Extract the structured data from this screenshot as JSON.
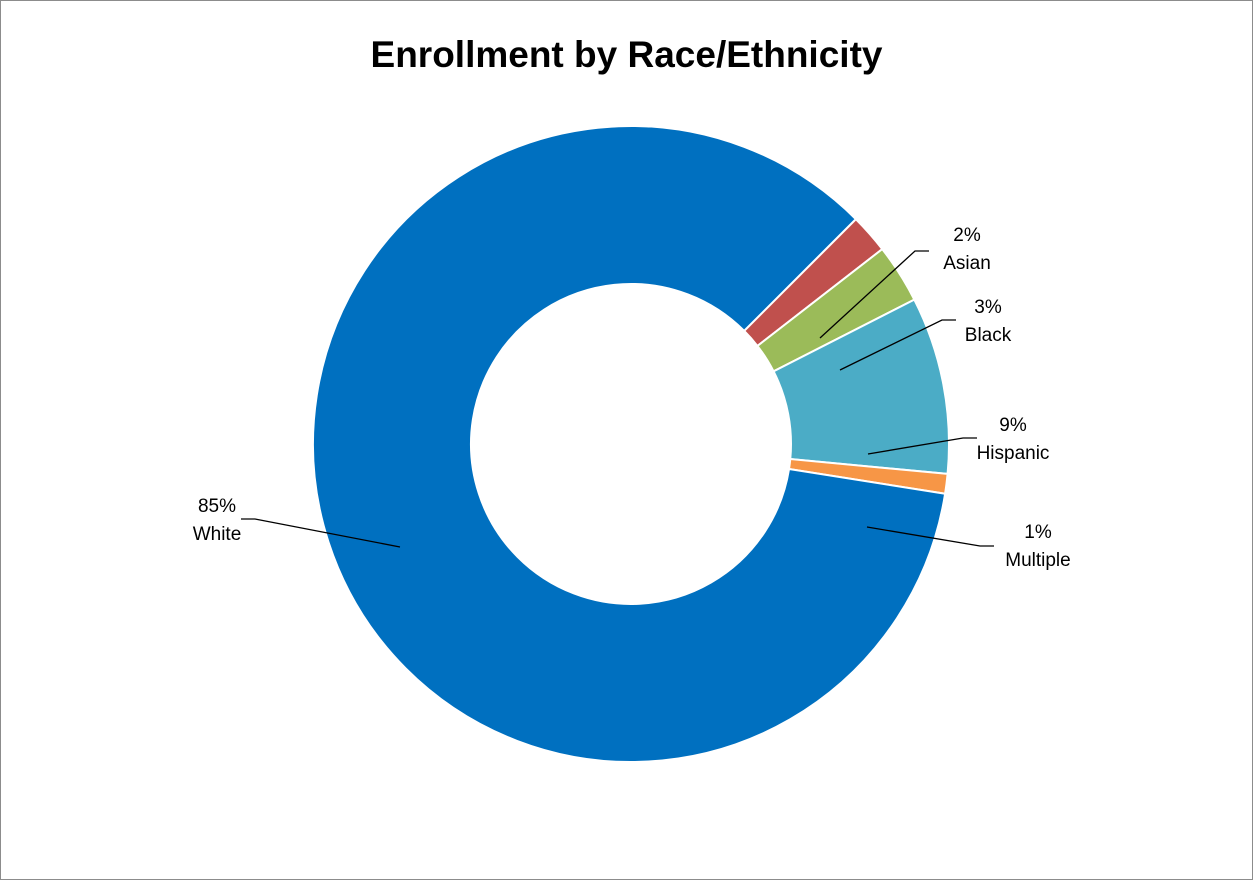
{
  "chart_data": {
    "type": "pie",
    "subtype": "doughnut",
    "title": "Enrollment by Race/Ethnicity",
    "slices": [
      {
        "category": "White",
        "value": 85,
        "label": "85%",
        "color": "#0070C0"
      },
      {
        "category": "Asian",
        "value": 2,
        "label": "2%",
        "color": "#C0504D"
      },
      {
        "category": "Black",
        "value": 3,
        "label": "3%",
        "color": "#9BBB59"
      },
      {
        "category": "Hispanic",
        "value": 9,
        "label": "9%",
        "color": "#4BACC6"
      },
      {
        "category": "Multiple",
        "value": 1,
        "label": "1%",
        "color": "#F79646"
      }
    ],
    "legend": "none",
    "data_labels": "outside with leader lines"
  }
}
